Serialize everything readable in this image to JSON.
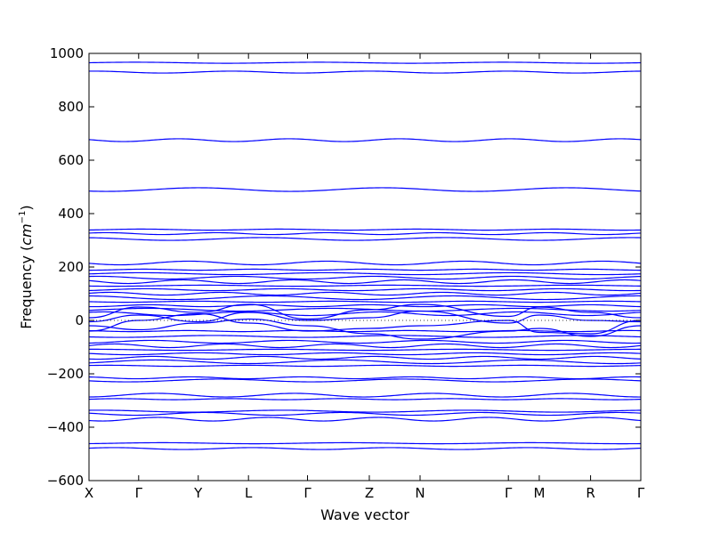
{
  "chart_data": {
    "type": "line",
    "title": "",
    "xlabel": "Wave vector",
    "ylabel_main": "Frequency (",
    "ylabel_unit": "cm",
    "ylabel_exp": "−1",
    "ylabel_close": ")",
    "ylim": [
      -600,
      1000
    ],
    "yticks": [
      -600,
      -400,
      -200,
      0,
      200,
      400,
      600,
      800,
      1000
    ],
    "ytick_labels": [
      "−600",
      "−400",
      "−200",
      "0",
      "200",
      "400",
      "600",
      "800",
      "1000"
    ],
    "xlim": [
      0,
      1
    ],
    "high_symmetry_points": [
      {
        "label": "X",
        "x": 0.0
      },
      {
        "label": "Γ",
        "x": 0.09
      },
      {
        "label": "Y",
        "x": 0.198
      },
      {
        "label": "L",
        "x": 0.289
      },
      {
        "label": "Γ",
        "x": 0.396
      },
      {
        "label": "Z",
        "x": 0.508
      },
      {
        "label": "N",
        "x": 0.6
      },
      {
        "label": "Γ",
        "x": 0.76
      },
      {
        "label": "M",
        "x": 0.816
      },
      {
        "label": "R",
        "x": 0.909
      },
      {
        "label": "Γ",
        "x": 1.0
      }
    ],
    "line_color": "#0000ff",
    "zero_line": "dotted",
    "grid": false,
    "legend": "none",
    "band_levels": [
      965,
      930,
      675,
      490,
      340,
      325,
      305,
      215,
      190,
      175,
      160,
      145,
      130,
      115,
      100,
      85,
      70,
      55,
      40,
      25,
      -40,
      -60,
      -80,
      -95,
      -110,
      -125,
      -140,
      -155,
      -170,
      -215,
      -225,
      -280,
      -295,
      -340,
      -350,
      -370,
      -460,
      -480
    ],
    "dispersive_bands": [
      {
        "x": [
          0.0,
          0.09,
          0.198,
          0.289,
          0.396,
          0.508,
          0.6,
          0.76,
          0.816,
          0.909,
          1.0
        ],
        "y": [
          -5,
          20,
          -5,
          30,
          0,
          10,
          35,
          -10,
          20,
          0,
          -5
        ]
      },
      {
        "x": [
          0.0,
          0.09,
          0.198,
          0.289,
          0.396,
          0.508,
          0.6,
          0.76,
          0.816,
          0.909,
          1.0
        ],
        "y": [
          -40,
          0,
          25,
          -10,
          -40,
          -30,
          -20,
          0,
          -45,
          -50,
          0
        ]
      },
      {
        "x": [
          0.0,
          0.09,
          0.198,
          0.289,
          0.396,
          0.508,
          0.6,
          0.76,
          0.816,
          0.909,
          1.0
        ],
        "y": [
          10,
          50,
          30,
          60,
          5,
          40,
          60,
          15,
          50,
          30,
          10
        ]
      },
      {
        "x": [
          0.0,
          0.09,
          0.198,
          0.289,
          0.396,
          0.508,
          0.6,
          0.76,
          0.816,
          0.909,
          1.0
        ],
        "y": [
          -20,
          -35,
          -10,
          5,
          -20,
          -50,
          -70,
          -40,
          -30,
          -60,
          -20
        ]
      }
    ]
  }
}
